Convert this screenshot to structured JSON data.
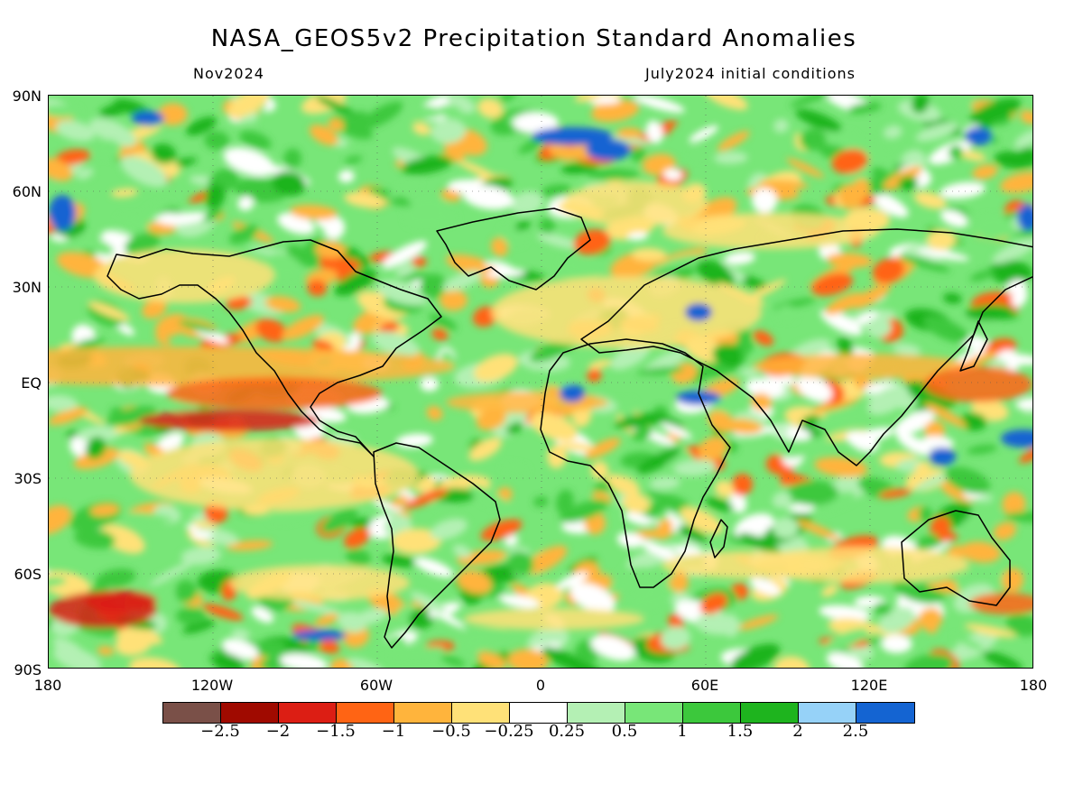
{
  "header": {
    "title": "NASA_GEOS5v2 Precipitation Standard Anomalies",
    "month": "Nov2024",
    "init": "July2024 initial conditions"
  },
  "axes": {
    "lat_labels": [
      "90N",
      "60N",
      "30N",
      "EQ",
      "30S",
      "60S",
      "90S"
    ],
    "lon_labels": [
      "180",
      "120W",
      "60W",
      "0",
      "60E",
      "120E",
      "180"
    ]
  },
  "colorbar": {
    "colors": [
      "#7a5048",
      "#a00a00",
      "#dc1e14",
      "#ff6414",
      "#ffb43c",
      "#ffe178",
      "#ffffff",
      "#b4f0b4",
      "#78e678",
      "#3cc83c",
      "#1eb41e",
      "#96d2f8",
      "#1464d2"
    ],
    "labels": [
      "−2.5",
      "−2",
      "−1.5",
      "−1",
      "−0.5",
      "−0.25",
      "0.25",
      "0.5",
      "1",
      "1.5",
      "2",
      "2.5"
    ]
  },
  "chart_data": {
    "type": "heatmap",
    "title": "NASA_GEOS5v2 Precipitation Standard Anomalies",
    "valid_month": "Nov2024",
    "initial_conditions": "July2024 initial conditions",
    "x_range": [
      -180,
      180
    ],
    "y_range": [
      -90,
      90
    ],
    "levels": [
      -2.5,
      -2,
      -1.5,
      -1,
      -0.5,
      -0.25,
      0.25,
      0.5,
      1,
      1.5,
      2,
      2.5
    ],
    "grid": true,
    "legend_position": "bottom"
  }
}
